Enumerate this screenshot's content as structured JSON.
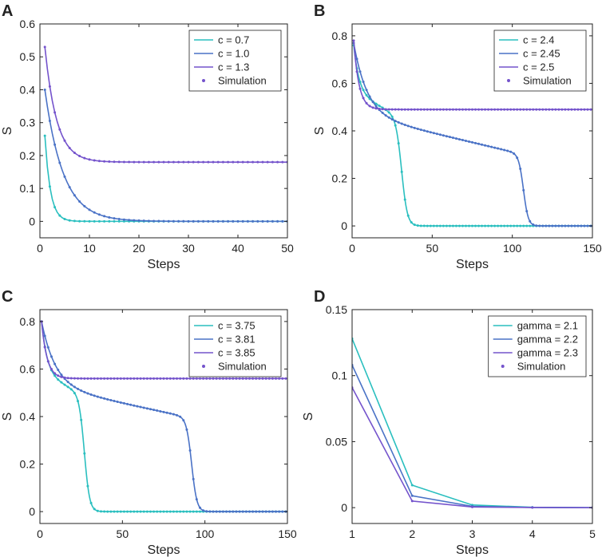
{
  "chart_data": [
    {
      "type": "line",
      "panel": "A",
      "xlabel": "Steps",
      "ylabel": "S",
      "xlim": [
        0,
        50
      ],
      "ylim": [
        -0.05,
        0.6
      ],
      "xticks": [
        0,
        10,
        20,
        30,
        40,
        50
      ],
      "yticks": [
        0,
        0.1,
        0.2,
        0.3,
        0.4,
        0.5,
        0.6
      ],
      "xtick_labels": [
        "0",
        "10",
        "20",
        "30",
        "40",
        "50"
      ],
      "ytick_labels": [
        "0",
        "0.1",
        "0.2",
        "0.3",
        "0.4",
        "0.5",
        "0.6"
      ],
      "legend": {
        "position": "top-right",
        "simulation_label": "Simulation"
      },
      "model": "exp",
      "x_range": [
        1,
        50
      ],
      "sim_step": 1,
      "series": [
        {
          "name": "c = 0.7",
          "color": "#2ABFBF",
          "params": {
            "s0": 0.26,
            "k": 0.9,
            "inf": 0
          }
        },
        {
          "name": "c = 1.0",
          "color": "#4A72C6",
          "params": {
            "s0": 0.4,
            "k": 0.27,
            "inf": 0
          }
        },
        {
          "name": "c = 1.3",
          "color": "#7453CC",
          "params": {
            "s0": 0.53,
            "k": 0.42,
            "inf": 0.18
          }
        }
      ]
    },
    {
      "type": "line",
      "panel": "B",
      "xlabel": "Steps",
      "ylabel": "S",
      "xlim": [
        0,
        150
      ],
      "ylim": [
        -0.05,
        0.85
      ],
      "xticks": [
        0,
        50,
        100,
        150
      ],
      "yticks": [
        0,
        0.2,
        0.4,
        0.6,
        0.8
      ],
      "xtick_labels": [
        "0",
        "50",
        "100",
        "150"
      ],
      "ytick_labels": [
        "0",
        "0.2",
        "0.4",
        "0.6",
        "0.8"
      ],
      "legend": {
        "position": "top-right",
        "simulation_label": "Simulation"
      },
      "model": "sigmoid",
      "x_range": [
        1,
        150
      ],
      "sim_step": 2,
      "series": [
        {
          "name": "c = 2.4",
          "color": "#2ABFBF",
          "params": {
            "s0": 0.76,
            "plateau": 0.56,
            "k": 0.3,
            "a": 0.0035,
            "tc": 31,
            "w": 1.8
          }
        },
        {
          "name": "c = 2.45",
          "color": "#4A72C6",
          "params": {
            "s0": 0.77,
            "plateau": 0.47,
            "k": 0.12,
            "a": 0.0016,
            "tc": 107,
            "w": 1.5
          }
        },
        {
          "name": "c = 2.5",
          "color": "#7453CC",
          "params": {
            "s0": 0.78,
            "plateau": 0.49,
            "k": 0.3,
            "a": 0,
            "tc": 1000,
            "w": 1
          }
        }
      ]
    },
    {
      "type": "line",
      "panel": "C",
      "xlabel": "Steps",
      "ylabel": "S",
      "xlim": [
        0,
        150
      ],
      "ylim": [
        -0.05,
        0.85
      ],
      "xticks": [
        0,
        50,
        100,
        150
      ],
      "yticks": [
        0,
        0.2,
        0.4,
        0.6,
        0.8
      ],
      "xtick_labels": [
        "0",
        "50",
        "100",
        "150"
      ],
      "ytick_labels": [
        "0",
        "0.2",
        "0.4",
        "0.6",
        "0.8"
      ],
      "legend": {
        "position": "top-right",
        "simulation_label": "Simulation"
      },
      "model": "sigmoid",
      "x_range": [
        1,
        150
      ],
      "sim_step": 2,
      "series": [
        {
          "name": "c = 3.75",
          "color": "#2ABFBF",
          "params": {
            "s0": 0.8,
            "plateau": 0.58,
            "k": 0.3,
            "a": 0.0035,
            "tc": 27,
            "w": 1.6
          }
        },
        {
          "name": "c = 3.81",
          "color": "#4A72C6",
          "params": {
            "s0": 0.8,
            "plateau": 0.53,
            "k": 0.12,
            "a": 0.0015,
            "tc": 92,
            "w": 1.6
          }
        },
        {
          "name": "c = 3.85",
          "color": "#7453CC",
          "params": {
            "s0": 0.8,
            "plateau": 0.56,
            "k": 0.3,
            "a": 0,
            "tc": 1000,
            "w": 1
          }
        }
      ]
    },
    {
      "type": "line",
      "panel": "D",
      "xlabel": "Steps",
      "ylabel": "S",
      "xlim": [
        1,
        5
      ],
      "ylim": [
        -0.012,
        0.15
      ],
      "xticks": [
        1,
        2,
        3,
        4,
        5
      ],
      "yticks": [
        0,
        0.05,
        0.1,
        0.15
      ],
      "xtick_labels": [
        "1",
        "2",
        "3",
        "4",
        "5"
      ],
      "ytick_labels": [
        "0",
        "0.05",
        "0.1",
        "0.15"
      ],
      "legend": {
        "position": "top-right",
        "simulation_label": "Simulation"
      },
      "model": "points",
      "x": [
        1,
        2,
        3,
        4,
        5
      ],
      "series": [
        {
          "name": "gamma = 2.1",
          "color": "#2ABFBF",
          "values": [
            0.128,
            0.017,
            0.002,
            0.0003,
            0
          ]
        },
        {
          "name": "gamma = 2.2",
          "color": "#4A72C6",
          "values": [
            0.108,
            0.009,
            0.001,
            0.0001,
            0
          ]
        },
        {
          "name": "gamma = 2.3",
          "color": "#7453CC",
          "values": [
            0.091,
            0.005,
            0.0005,
            0.0001,
            0
          ]
        }
      ]
    }
  ]
}
